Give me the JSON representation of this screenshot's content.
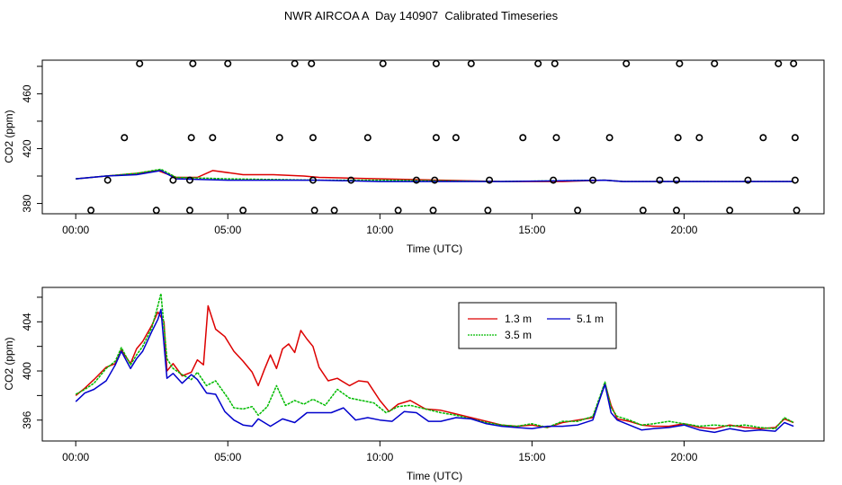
{
  "page_title": "NWR AIRCOA A  Day 140907  Calibrated Timeseries",
  "chart_data": [
    {
      "type": "scatter+line",
      "xlabel": "Time (UTC)",
      "ylabel": "CO2 (ppm)",
      "xlim": [
        -1.1,
        24.6
      ],
      "ylim": [
        372.5,
        484.5
      ],
      "xticks": [
        0,
        5,
        10,
        15,
        20
      ],
      "xtick_labels": [
        "00:00",
        "05:00",
        "10:00",
        "15:00",
        "20:00"
      ],
      "yticks": [
        380,
        420,
        460
      ],
      "ytick_labels": [
        "380",
        "420",
        "460"
      ],
      "calibration_points": [
        {
          "level": 482,
          "x": [
            2.1,
            3.85,
            5.0,
            7.2,
            7.75,
            10.1,
            11.85,
            13.0,
            15.2,
            15.75,
            18.1,
            19.85,
            21.0,
            23.1,
            23.6
          ]
        },
        {
          "level": 428,
          "x": [
            1.6,
            3.8,
            4.5,
            6.7,
            7.8,
            9.6,
            11.85,
            12.5,
            14.7,
            15.8,
            17.55,
            19.8,
            20.5,
            22.6,
            23.65
          ]
        },
        {
          "level": 397,
          "x": [
            1.05,
            3.2,
            3.75,
            7.8,
            9.05,
            11.2,
            11.8,
            13.6,
            15.7,
            17.0,
            19.2,
            19.75,
            22.1,
            23.65
          ]
        },
        {
          "level": 375,
          "x": [
            0.5,
            2.65,
            3.75,
            5.5,
            7.85,
            8.5,
            10.6,
            11.75,
            13.55,
            16.5,
            18.65,
            19.75,
            21.5,
            23.7
          ]
        }
      ],
      "series": [
        {
          "name": "1.3 m",
          "color": "#dd0000",
          "x": [
            0,
            1,
            2,
            2.7,
            3.3,
            4.0,
            4.5,
            5.5,
            6.5,
            7.5,
            8.0,
            10,
            12,
            14,
            16,
            17.4,
            18,
            20,
            22,
            23.6
          ],
          "y": [
            398,
            400,
            402,
            404,
            399,
            399,
            404,
            401,
            401,
            400,
            399,
            398,
            397,
            396,
            396,
            397,
            396,
            396,
            396,
            396
          ]
        },
        {
          "name": "3.5 m",
          "color": "#00bb00",
          "x": [
            0,
            1,
            2,
            2.8,
            3.3,
            5,
            8,
            10,
            14,
            17.4,
            18,
            20,
            22,
            23.6
          ],
          "y": [
            398,
            400,
            402,
            405,
            399,
            398,
            397,
            397,
            396,
            397,
            396,
            396,
            396,
            396
          ]
        },
        {
          "name": "5.1 m",
          "color": "#0000cc",
          "x": [
            0,
            1,
            2,
            2.8,
            3.3,
            5,
            8,
            10,
            14,
            17.4,
            18,
            20,
            22,
            23.6
          ],
          "y": [
            398,
            400,
            401,
            404,
            398,
            397,
            397,
            396,
            396,
            397,
            396,
            396,
            396,
            396
          ]
        }
      ]
    },
    {
      "type": "line",
      "xlabel": "Time (UTC)",
      "ylabel": "CO2 (ppm)",
      "xlim": [
        -1.1,
        24.6
      ],
      "ylim": [
        394.3,
        406.8
      ],
      "xticks": [
        0,
        5,
        10,
        15,
        20
      ],
      "xtick_labels": [
        "00:00",
        "05:00",
        "10:00",
        "15:00",
        "20:00"
      ],
      "yticks": [
        396,
        400,
        404
      ],
      "ytick_labels": [
        "396",
        "400",
        "404"
      ],
      "legend_position": "top-right",
      "series": [
        {
          "name": "1.3 m",
          "color": "#dd0000",
          "x": [
            0,
            0.3,
            0.6,
            1.0,
            1.3,
            1.5,
            1.8,
            2.0,
            2.2,
            2.5,
            2.7,
            2.9,
            3.0,
            3.2,
            3.5,
            3.8,
            4.0,
            4.2,
            4.35,
            4.6,
            4.9,
            5.2,
            5.5,
            5.8,
            6.0,
            6.2,
            6.4,
            6.6,
            6.8,
            7.0,
            7.2,
            7.4,
            7.6,
            7.8,
            8.0,
            8.3,
            8.6,
            9.0,
            9.3,
            9.6,
            10.0,
            10.3,
            10.6,
            11.0,
            11.5,
            12.0,
            12.5,
            13.0,
            13.5,
            14.0,
            14.5,
            15.0,
            15.5,
            16.0,
            16.5,
            17.0,
            17.2,
            17.4,
            17.6,
            17.8,
            18.2,
            18.6,
            19.0,
            19.5,
            20.0,
            20.5,
            21.0,
            21.5,
            22.0,
            22.5,
            23.0,
            23.3,
            23.6
          ],
          "y": [
            398.0,
            398.6,
            399.3,
            400.3,
            400.6,
            401.7,
            400.6,
            401.8,
            402.4,
            403.7,
            404.8,
            404.0,
            400.0,
            400.6,
            399.6,
            399.9,
            400.9,
            400.5,
            405.3,
            403.4,
            402.8,
            401.6,
            400.8,
            399.9,
            398.8,
            400.1,
            401.3,
            400.2,
            401.8,
            402.2,
            401.5,
            403.3,
            402.6,
            402.0,
            400.3,
            399.2,
            399.4,
            398.8,
            399.2,
            399.1,
            397.6,
            396.7,
            397.3,
            397.6,
            396.9,
            396.8,
            396.5,
            396.2,
            395.9,
            395.6,
            395.5,
            395.6,
            395.4,
            395.8,
            396.0,
            396.2,
            397.5,
            399.0,
            397.2,
            396.1,
            395.9,
            395.6,
            395.5,
            395.5,
            395.7,
            395.4,
            395.3,
            395.6,
            395.4,
            395.3,
            395.4,
            396.1,
            395.8
          ]
        },
        {
          "name": "3.5 m",
          "color": "#00bb00",
          "x": [
            0,
            0.3,
            0.6,
            1.0,
            1.3,
            1.5,
            1.8,
            2.0,
            2.2,
            2.5,
            2.7,
            2.8,
            3.0,
            3.2,
            3.5,
            3.8,
            4.0,
            4.3,
            4.6,
            5.0,
            5.2,
            5.5,
            5.8,
            6.0,
            6.3,
            6.6,
            6.9,
            7.2,
            7.5,
            7.8,
            8.2,
            8.6,
            9.0,
            9.4,
            9.8,
            10.2,
            10.6,
            11.0,
            11.5,
            12.0,
            12.5,
            13.0,
            13.5,
            14.0,
            14.5,
            15.0,
            15.5,
            16.0,
            16.5,
            17.0,
            17.2,
            17.4,
            17.6,
            17.8,
            18.2,
            18.6,
            19.0,
            19.5,
            20.0,
            20.5,
            21.0,
            21.5,
            22.0,
            22.5,
            23.0,
            23.3,
            23.6
          ],
          "y": [
            398.1,
            398.5,
            399.0,
            400.2,
            400.8,
            401.9,
            400.5,
            401.3,
            402.0,
            403.5,
            405.3,
            406.3,
            401.0,
            400.2,
            399.7,
            399.3,
            399.9,
            398.8,
            399.2,
            397.8,
            397.0,
            396.9,
            397.1,
            396.4,
            397.1,
            398.8,
            397.2,
            397.6,
            397.3,
            397.7,
            397.2,
            398.5,
            397.8,
            397.6,
            397.4,
            396.6,
            397.1,
            397.2,
            396.9,
            396.6,
            396.4,
            396.1,
            395.8,
            395.6,
            395.5,
            395.7,
            395.4,
            395.9,
            395.9,
            396.3,
            397.7,
            399.1,
            397.0,
            396.3,
            396.0,
            395.6,
            395.7,
            395.9,
            395.7,
            395.5,
            395.6,
            395.5,
            395.6,
            395.4,
            395.3,
            396.2,
            395.8
          ]
        },
        {
          "name": "5.1 m",
          "color": "#0000cc",
          "x": [
            0,
            0.3,
            0.6,
            1.0,
            1.3,
            1.5,
            1.8,
            2.0,
            2.2,
            2.5,
            2.7,
            2.8,
            3.0,
            3.2,
            3.5,
            3.8,
            4.0,
            4.3,
            4.6,
            4.9,
            5.2,
            5.5,
            5.8,
            6.0,
            6.4,
            6.8,
            7.2,
            7.6,
            8.0,
            8.4,
            8.8,
            9.2,
            9.6,
            10.0,
            10.4,
            10.8,
            11.2,
            11.6,
            12.0,
            12.5,
            13.0,
            13.5,
            14.0,
            14.5,
            15.0,
            15.5,
            16.0,
            16.5,
            17.0,
            17.2,
            17.4,
            17.6,
            17.8,
            18.2,
            18.6,
            19.0,
            19.5,
            20.0,
            20.5,
            21.0,
            21.5,
            22.0,
            22.5,
            23.0,
            23.3,
            23.6
          ],
          "y": [
            397.5,
            398.2,
            398.5,
            399.2,
            400.5,
            401.6,
            400.2,
            401.0,
            401.6,
            403.2,
            404.2,
            405.0,
            399.4,
            399.8,
            399.0,
            399.7,
            399.3,
            398.2,
            398.1,
            396.7,
            396.0,
            395.6,
            395.5,
            396.1,
            395.5,
            396.1,
            395.8,
            396.6,
            396.6,
            396.6,
            397.0,
            396.0,
            396.2,
            396.0,
            395.9,
            396.7,
            396.6,
            395.9,
            395.9,
            396.2,
            396.1,
            395.7,
            395.5,
            395.4,
            395.3,
            395.5,
            395.5,
            395.6,
            396.0,
            397.5,
            398.9,
            396.6,
            396.0,
            395.6,
            395.2,
            395.3,
            395.4,
            395.6,
            395.2,
            395.0,
            395.3,
            395.1,
            395.2,
            395.1,
            395.8,
            395.5
          ]
        }
      ]
    }
  ]
}
